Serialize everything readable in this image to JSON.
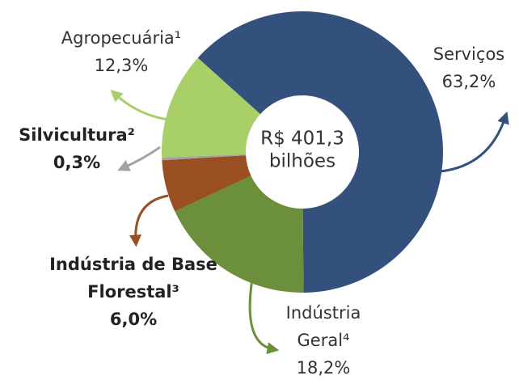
{
  "chart_data": {
    "type": "donut",
    "center_label": [
      "R$ 401,3",
      "bilhões"
    ],
    "categories": [
      "Serviços",
      "Indústria Geral⁴",
      "Indústria de Base Florestal³",
      "Silvicultura²",
      "Agropecuária¹"
    ],
    "values": [
      63.2,
      18.2,
      6.0,
      0.3,
      12.3
    ],
    "value_labels": [
      "63,2%",
      "18,2%",
      "6,0%",
      "0,3%",
      "12,3%"
    ],
    "colors": [
      "#34507c",
      "#6b8f3a",
      "#9a4f22",
      "#a3a3a3",
      "#a9cf68"
    ],
    "bold": [
      false,
      false,
      true,
      true,
      false
    ]
  }
}
